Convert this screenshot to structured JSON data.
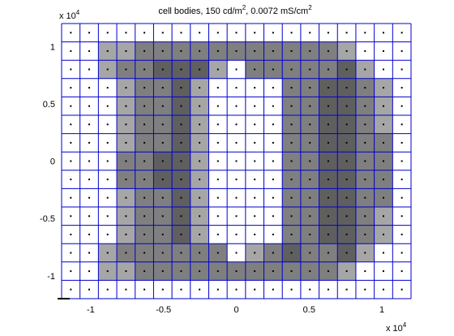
{
  "chart_data": {
    "type": "heatmap",
    "title": "cell bodies, 150 cd/m², 0.0072 mS/cm²",
    "title_parts": {
      "a": "cell bodies, 150 cd/m",
      "sup1": "2",
      "b": ", 0.0072 mS/cm",
      "sup2": "2"
    },
    "xlabel": "",
    "ylabel": "",
    "x_multiplier": {
      "text": "x 10",
      "exp": "4"
    },
    "y_multiplier": {
      "text": "x 10",
      "exp": "4"
    },
    "xlim": [
      -1.2,
      1.2
    ],
    "ylim": [
      -1.2,
      1.2
    ],
    "x_ticks": [
      {
        "value": -1,
        "label": "-1"
      },
      {
        "value": -0.5,
        "label": "-0.5"
      },
      {
        "value": 0,
        "label": "0"
      },
      {
        "value": 0.5,
        "label": "0.5"
      },
      {
        "value": 1,
        "label": "1"
      }
    ],
    "y_ticks": [
      {
        "value": 1,
        "label": "1"
      },
      {
        "value": 0.5,
        "label": "0.5"
      },
      {
        "value": 0,
        "label": "0"
      },
      {
        "value": -0.5,
        "label": "-0.5"
      },
      {
        "value": -1,
        "label": "-1"
      }
    ],
    "grid": true,
    "grid_color": "#0000cc",
    "marker_color": "#000000",
    "cell_colors": [
      "#ffffff",
      "#a6a6a6",
      "#7f7f7f",
      "#5f5f5f"
    ],
    "columns": 19,
    "rows": 15,
    "values": [
      "0000000000000000000",
      "0011222222222221000",
      "0012233310222223100",
      "0001223100002233210",
      "0001223100002233210",
      "0001223100002233210",
      "0001223100002233220",
      "0002233100002233220",
      "0002233100002233220",
      "0001223100002233220",
      "0001223100002233210",
      "0001223100002233210",
      "0012222220123223100",
      "0011222222222221000",
      "0000000000000000000"
    ]
  }
}
